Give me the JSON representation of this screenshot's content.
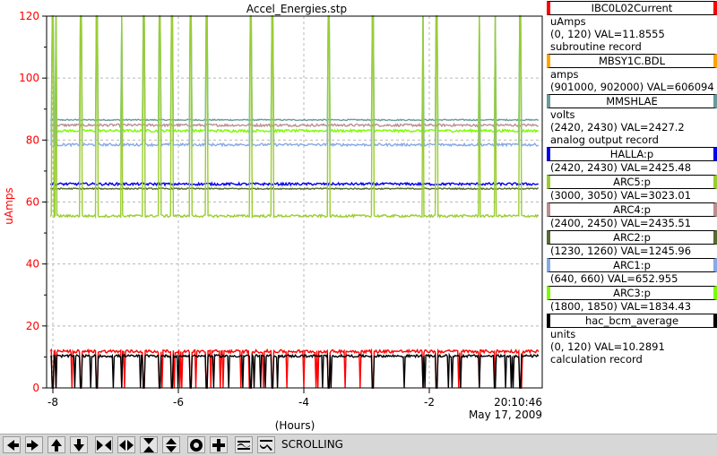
{
  "chart_data": {
    "type": "line",
    "title": "Accel_Energies.stp",
    "xlabel": "(Hours)",
    "ylabel": "uAmps",
    "xlim": [
      -8.1,
      -0.2
    ],
    "ylim": [
      0,
      120
    ],
    "x_ticks": [
      -8,
      -6,
      -4,
      -2
    ],
    "y_ticks": [
      0,
      20,
      40,
      60,
      80,
      100,
      120
    ],
    "grid": true,
    "timestamp_time": "20:10:46",
    "timestamp_date": "May 17, 2009",
    "series": [
      {
        "name": "IBC0L02Current",
        "color": "#ff0000",
        "base": 11.8,
        "drop": 0,
        "noise": 0.5
      },
      {
        "name": "MBSY1C.BDL",
        "color": "#ffa500",
        "base": null
      },
      {
        "name": "MMSHLAE",
        "color": "#6a9a9a",
        "base": 86.5,
        "drop": null,
        "noise": 0.2
      },
      {
        "name": "HALLA:p",
        "color": "#0000ee",
        "base": 65.8,
        "drop": null,
        "noise": 0.4
      },
      {
        "name": "ARC5:p",
        "color": "#9acd32",
        "base": 55.5,
        "drop": 120,
        "noise": 0.4
      },
      {
        "name": "ARC4:p",
        "color": "#bc8f8f",
        "base": 84.8,
        "drop": null,
        "noise": 0.4
      },
      {
        "name": "ARC2:p",
        "color": "#556b2f",
        "base": 64.3,
        "drop": null,
        "noise": 0.2
      },
      {
        "name": "ARC1:p",
        "color": "#87aae6",
        "base": 78.5,
        "drop": 120,
        "noise": 0.4
      },
      {
        "name": "ARC3:p",
        "color": "#7cfc00",
        "base": 83.0,
        "drop": 120,
        "noise": 0.4
      },
      {
        "name": "hac_bcm_average",
        "color": "#000000",
        "base": 10.3,
        "drop": 0,
        "noise": 0.4
      }
    ]
  },
  "legend": [
    {
      "name": "IBC0L02Current",
      "color": "#ff0000",
      "lines": [
        "uAmps",
        "(0, 120)  VAL=11.8555",
        "subroutine record"
      ]
    },
    {
      "name": "MBSY1C.BDL",
      "color": "#ffa500",
      "lines": [
        "amps",
        "(901000, 902000)  VAL=606094"
      ]
    },
    {
      "name": "MMSHLAE",
      "color": "#6a9a9a",
      "lines": [
        "volts",
        "(2420, 2430)  VAL=2427.2",
        "analog output record"
      ]
    },
    {
      "name": "HALLA:p",
      "color": "#0000ee",
      "lines": [
        "(2420, 2430)  VAL=2425.48"
      ]
    },
    {
      "name": "ARC5:p",
      "color": "#9acd32",
      "lines": [
        "(3000, 3050)  VAL=3023.01"
      ]
    },
    {
      "name": "ARC4:p",
      "color": "#bc8f8f",
      "lines": [
        "(2400, 2450)  VAL=2435.51"
      ]
    },
    {
      "name": "ARC2:p",
      "color": "#556b2f",
      "lines": [
        "(1230, 1260)  VAL=1245.96"
      ]
    },
    {
      "name": "ARC1:p",
      "color": "#87aae6",
      "lines": [
        "(640, 660)  VAL=652.955"
      ]
    },
    {
      "name": "ARC3:p",
      "color": "#7cfc00",
      "lines": [
        "(1800, 1850)  VAL=1834.43"
      ]
    },
    {
      "name": "hac_bcm_average",
      "color": "#000000",
      "lines": [
        "units",
        "(0, 120)  VAL=10.2891",
        "calculation record"
      ]
    }
  ],
  "toolbar": {
    "buttons": [
      "arrow-left-icon",
      "arrow-right-icon",
      "arrow-up-icon",
      "arrow-down-icon",
      "zoom-in-horizontal-icon",
      "zoom-out-horizontal-icon",
      "zoom-in-vertical-icon",
      "zoom-out-vertical-icon",
      "center-icon",
      "plus-icon",
      "autoscale-icon",
      "fit-icon"
    ],
    "status": "SCROLLING"
  }
}
